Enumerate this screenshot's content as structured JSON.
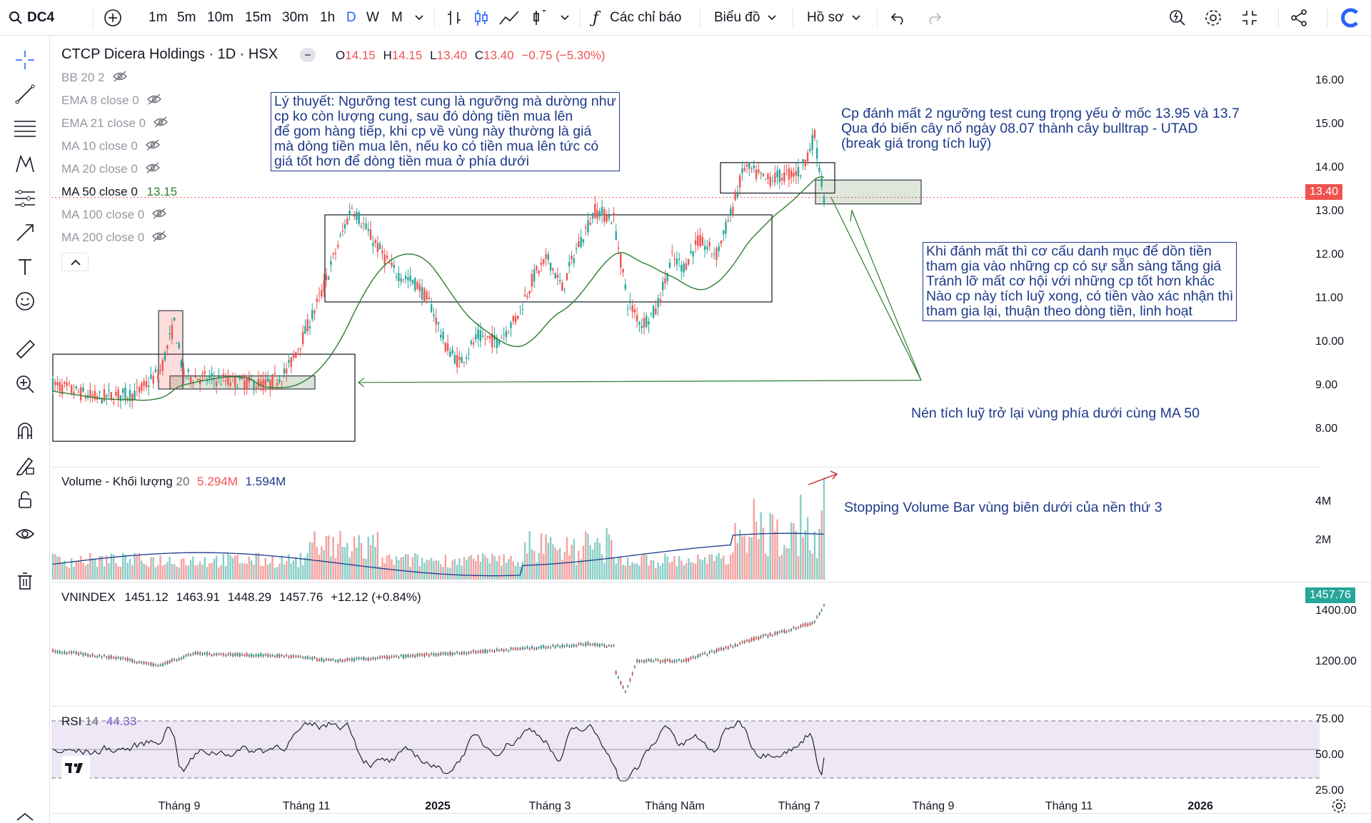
{
  "toolbar": {
    "symbol": "DC4",
    "intervals": [
      "1m",
      "5m",
      "10m",
      "15m",
      "30m",
      "1h",
      "D",
      "W",
      "M"
    ],
    "active_interval": "D",
    "indicators_label": "Các chỉ báo",
    "chart_label": "Biểu đồ",
    "profile_label": "Hồ sơ"
  },
  "sidebar": {
    "tools": [
      "crosshair-icon",
      "trend-line-icon",
      "fib-icon",
      "pattern-icon",
      "forecast-icon",
      "arrow-icon",
      "text-icon",
      "emoji-icon",
      "ruler-icon",
      "zoom-in-icon",
      "magnet-icon",
      "lock-draw-icon",
      "lock-icon",
      "eye-icon",
      "trash-icon"
    ]
  },
  "legend": {
    "title": "CTCP Dicera Holdings · 1D · HSX",
    "o_label": "O",
    "o_value": "14.15",
    "h_label": "H",
    "h_value": "14.15",
    "l_label": "L",
    "l_value": "13.40",
    "c_label": "C",
    "c_value": "13.40",
    "change": "−0.75 (−5.30%)",
    "indicators": [
      {
        "label": "BB 20 2",
        "value": "",
        "hidden": true
      },
      {
        "label": "EMA 8 close 0",
        "value": "",
        "hidden": true
      },
      {
        "label": "EMA 21 close 0",
        "value": "",
        "hidden": true
      },
      {
        "label": "MA 10 close 0",
        "value": "",
        "hidden": true
      },
      {
        "label": "MA 20 close 0",
        "value": "",
        "hidden": true
      },
      {
        "label": "MA 50 close 0",
        "value": "13.15",
        "hidden": false
      },
      {
        "label": "MA 100 close 0",
        "value": "",
        "hidden": true
      },
      {
        "label": "MA 200 close 0",
        "value": "",
        "hidden": true
      }
    ]
  },
  "price_axis": [
    "16.00",
    "15.00",
    "14.00",
    "13.00",
    "12.00",
    "11.00",
    "10.00",
    "9.00",
    "8.00"
  ],
  "last_price": "13.40",
  "volume": {
    "label": "Volume - Khối lượng",
    "period": "20",
    "value1": "5.294M",
    "value2": "1.594M",
    "axis": [
      "4M",
      "2M"
    ]
  },
  "vnindex": {
    "label": "VNINDEX",
    "open": "1451.12",
    "high": "1463.91",
    "low": "1448.29",
    "close": "1457.76",
    "change": "+12.12 (+0.84%)",
    "last": "1457.76",
    "axis": [
      "1400.00",
      "1200.00"
    ]
  },
  "rsi": {
    "label": "RSI",
    "period": "14",
    "value": "44.33",
    "axis": [
      "75.00",
      "50.00",
      "25.00"
    ]
  },
  "time_axis": [
    "Tháng 9",
    "Tháng 11",
    "2025",
    "Tháng 3",
    "Tháng Năm",
    "Tháng 7",
    "Tháng 9",
    "Tháng 11",
    "2026"
  ],
  "annotations": {
    "theory": "Lý thuyết: Ngưỡng test cung là ngưỡng mà dường như\ncp ko còn lượng cung, sau đó dòng tiền mua lên\nđể gom hàng tiếp, khi cp về vùng này thường là giá\nmà dòng tiền mua lên, nếu ko có tiền mua lên tức có\ngiá tốt hơn để dòng tiền mua ở phía dưới",
    "lost_levels": "Cp đánh mất 2 ngưỡng test cung trọng yếu ở mốc 13.95 và 13.7\nQua đó biến cây nổ ngày 08.07 thành cây bulltrap - UTAD\n(break giá trong tích luỹ)",
    "portfolio": "Khi đánh mất thì cơ cấu danh mục để dồn tiền\ntham gia vào những cp có sự sẵn sàng tăng giá\nTránh lỡ mất cơ hội với những cp tốt hơn khác\nNào cp này tích luỹ xong, có tiền vào xác nhận thì\ntham gia lại, thuận theo dòng tiền, linh hoạt",
    "accumulation": "Nén tích luỹ trở lại vùng phía dưới cùng MA 50",
    "stopping_volume": "Stopping Volume Bar vùng biên dưới của nền thứ 3"
  },
  "colors": {
    "up": "#26a69a",
    "down": "#ef5350",
    "ma50": "#2e7d32",
    "annotation": "#1e3a8a",
    "rsi_fill": "#ede7f6",
    "accent": "#2962ff"
  }
}
